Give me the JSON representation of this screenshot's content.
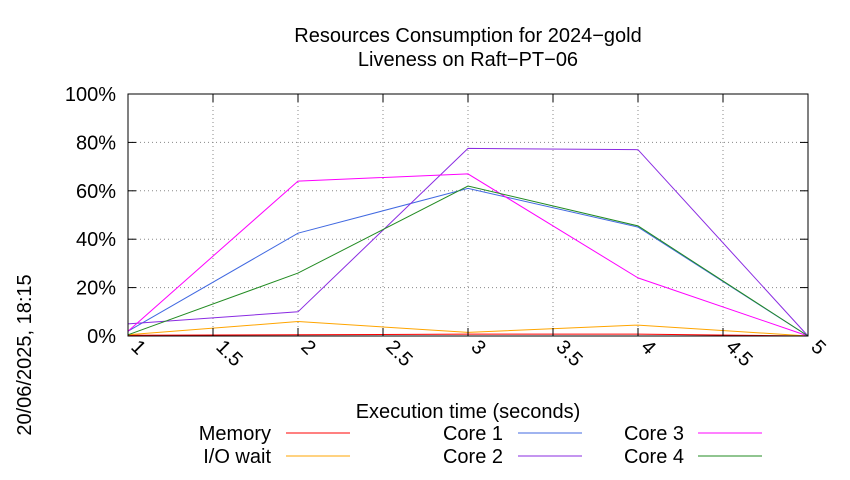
{
  "timestamp": "20/06/2025, 18:15",
  "chart_data": {
    "type": "line",
    "title": "Resources Consumption for 2024−gold",
    "subtitle": "Liveness on Raft−PT−06",
    "xlabel": "Execution time (seconds)",
    "ylabel": "",
    "xlim": [
      1,
      5
    ],
    "ylim": [
      0,
      100
    ],
    "x_ticks": [
      1,
      1.5,
      2,
      2.5,
      3,
      3.5,
      4,
      4.5,
      5
    ],
    "x_tick_labels": [
      "1",
      "1.5",
      "2",
      "2.5",
      "3",
      "3.5",
      "4",
      "4.5",
      "5"
    ],
    "y_ticks": [
      0,
      20,
      40,
      60,
      80,
      100
    ],
    "y_tick_labels": [
      "0%",
      "20%",
      "40%",
      "60%",
      "80%",
      "100%"
    ],
    "grid": true,
    "legend_position": "bottom",
    "x": [
      1,
      2,
      3,
      4,
      5
    ],
    "series": [
      {
        "name": "Memory",
        "color": "#ff0000",
        "values": [
          0.3,
          0.5,
          0.8,
          0.8,
          0
        ]
      },
      {
        "name": "I/O wait",
        "color": "#ffa500",
        "values": [
          0.5,
          6,
          1.5,
          4.5,
          0
        ]
      },
      {
        "name": "Core 1",
        "color": "#4169e1",
        "values": [
          2,
          42.5,
          61,
          45,
          0
        ]
      },
      {
        "name": "Core 2",
        "color": "#8a2be2",
        "values": [
          5,
          10,
          77.5,
          77,
          0
        ]
      },
      {
        "name": "Core 3",
        "color": "#ff00ff",
        "values": [
          2,
          64,
          67,
          24,
          0
        ]
      },
      {
        "name": "Core 4",
        "color": "#228b22",
        "values": [
          0.5,
          26,
          62,
          45.5,
          0
        ]
      }
    ]
  }
}
